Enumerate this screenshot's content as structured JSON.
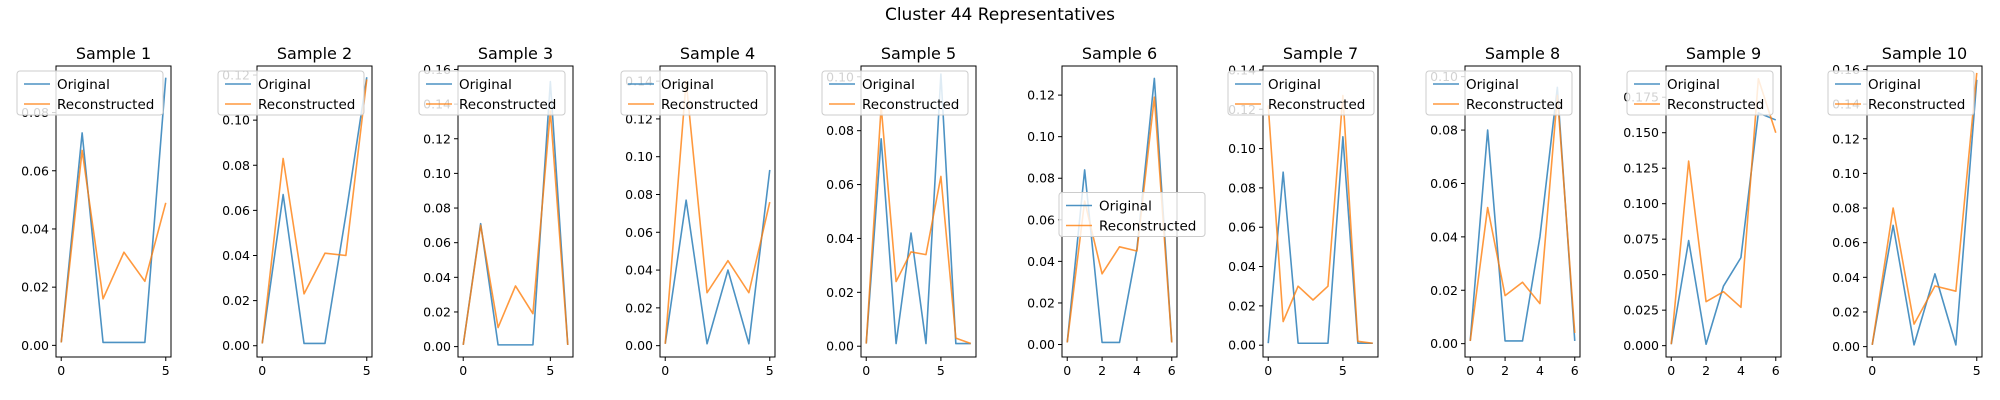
{
  "figure": {
    "title": "Cluster 44 Representatives"
  },
  "colors": {
    "original": "#1f77b4",
    "reconstructed": "#ff7f0e"
  },
  "legend": {
    "original": "Original",
    "reconstructed": "Reconstructed"
  },
  "chart_data": [
    {
      "type": "line",
      "title": "Sample 1",
      "legend_loc": "upper-left",
      "xlim": [
        -0.25,
        5.25
      ],
      "xticks": [
        0,
        5
      ],
      "ylim": [
        -0.004,
        0.096
      ],
      "yticks": [
        0.0,
        0.02,
        0.04,
        0.06,
        0.08
      ],
      "ytick_labels": [
        "0.00",
        "0.02",
        "0.04",
        "0.06",
        "0.08"
      ],
      "series": [
        {
          "name": "Original",
          "x": [
            0,
            1,
            2,
            3,
            4,
            5
          ],
          "values": [
            0.001,
            0.073,
            0.001,
            0.001,
            0.001,
            0.092
          ]
        },
        {
          "name": "Reconstructed",
          "x": [
            0,
            1,
            2,
            3,
            4,
            5
          ],
          "values": [
            0.001,
            0.067,
            0.016,
            0.032,
            0.022,
            0.049
          ]
        }
      ]
    },
    {
      "type": "line",
      "title": "Sample 2",
      "legend_loc": "upper-left",
      "xlim": [
        -0.25,
        5.25
      ],
      "xticks": [
        0,
        5
      ],
      "ylim": [
        -0.005,
        0.124
      ],
      "yticks": [
        0.0,
        0.02,
        0.04,
        0.06,
        0.08,
        0.1,
        0.12
      ],
      "ytick_labels": [
        "0.00",
        "0.02",
        "0.04",
        "0.06",
        "0.08",
        "0.10",
        "0.12"
      ],
      "series": [
        {
          "name": "Original",
          "x": [
            0,
            1,
            2,
            3,
            4,
            5
          ],
          "values": [
            0.001,
            0.067,
            0.001,
            0.001,
            0.058,
            0.119
          ]
        },
        {
          "name": "Reconstructed",
          "x": [
            0,
            1,
            2,
            3,
            4,
            5
          ],
          "values": [
            0.001,
            0.083,
            0.023,
            0.041,
            0.04,
            0.118
          ]
        }
      ]
    },
    {
      "type": "line",
      "title": "Sample 3",
      "legend_loc": "upper-left",
      "xlim": [
        -0.3,
        6.3
      ],
      "xticks": [
        0,
        5
      ],
      "ylim": [
        -0.006,
        0.162
      ],
      "yticks": [
        0.0,
        0.02,
        0.04,
        0.06,
        0.08,
        0.1,
        0.12,
        0.14,
        0.16
      ],
      "ytick_labels": [
        "0.00",
        "0.02",
        "0.04",
        "0.06",
        "0.08",
        "0.10",
        "0.12",
        "0.14",
        "0.16"
      ],
      "series": [
        {
          "name": "Original",
          "x": [
            0,
            1,
            2,
            3,
            4,
            5,
            6
          ],
          "values": [
            0.001,
            0.071,
            0.001,
            0.001,
            0.001,
            0.153,
            0.001
          ]
        },
        {
          "name": "Reconstructed",
          "x": [
            0,
            1,
            2,
            3,
            4,
            5,
            6
          ],
          "values": [
            0.001,
            0.07,
            0.011,
            0.035,
            0.019,
            0.136,
            0.001
          ]
        }
      ]
    },
    {
      "type": "line",
      "title": "Sample 4",
      "legend_loc": "upper-left",
      "xlim": [
        -0.25,
        5.25
      ],
      "xticks": [
        0,
        5
      ],
      "ylim": [
        -0.006,
        0.148
      ],
      "yticks": [
        0.0,
        0.02,
        0.04,
        0.06,
        0.08,
        0.1,
        0.12,
        0.14
      ],
      "ytick_labels": [
        "0.00",
        "0.02",
        "0.04",
        "0.06",
        "0.08",
        "0.10",
        "0.12",
        "0.14"
      ],
      "series": [
        {
          "name": "Original",
          "x": [
            0,
            1,
            2,
            3,
            4,
            5
          ],
          "values": [
            0.001,
            0.077,
            0.001,
            0.04,
            0.001,
            0.093
          ]
        },
        {
          "name": "Reconstructed",
          "x": [
            0,
            1,
            2,
            3,
            4,
            5
          ],
          "values": [
            0.001,
            0.14,
            0.028,
            0.045,
            0.028,
            0.076
          ]
        }
      ]
    },
    {
      "type": "line",
      "title": "Sample 5",
      "legend_loc": "upper-left",
      "xlim": [
        -0.35,
        7.35
      ],
      "xticks": [
        0,
        5
      ],
      "ylim": [
        -0.004,
        0.104
      ],
      "yticks": [
        0.0,
        0.02,
        0.04,
        0.06,
        0.08,
        0.1
      ],
      "ytick_labels": [
        "0.00",
        "0.02",
        "0.04",
        "0.06",
        "0.08",
        "0.10"
      ],
      "series": [
        {
          "name": "Original",
          "x": [
            0,
            1,
            2,
            3,
            4,
            5,
            6,
            7
          ],
          "values": [
            0.001,
            0.077,
            0.001,
            0.042,
            0.001,
            0.101,
            0.001,
            0.001
          ]
        },
        {
          "name": "Reconstructed",
          "x": [
            0,
            1,
            2,
            3,
            4,
            5,
            6,
            7
          ],
          "values": [
            0.001,
            0.089,
            0.024,
            0.035,
            0.034,
            0.063,
            0.003,
            0.001
          ]
        }
      ]
    },
    {
      "type": "line",
      "title": "Sample 6",
      "legend_loc": "center-left",
      "xlim": [
        -0.3,
        6.3
      ],
      "xticks": [
        0,
        2,
        4,
        6
      ],
      "ylim": [
        -0.006,
        0.134
      ],
      "yticks": [
        0.0,
        0.02,
        0.04,
        0.06,
        0.08,
        0.1,
        0.12
      ],
      "ytick_labels": [
        "0.00",
        "0.02",
        "0.04",
        "0.06",
        "0.08",
        "0.10",
        "0.12"
      ],
      "series": [
        {
          "name": "Original",
          "x": [
            0,
            1,
            2,
            3,
            4,
            5,
            6
          ],
          "values": [
            0.001,
            0.084,
            0.001,
            0.001,
            0.046,
            0.128,
            0.001
          ]
        },
        {
          "name": "Reconstructed",
          "x": [
            0,
            1,
            2,
            3,
            4,
            5,
            6
          ],
          "values": [
            0.001,
            0.069,
            0.034,
            0.047,
            0.045,
            0.119,
            0.001
          ]
        }
      ]
    },
    {
      "type": "line",
      "title": "Sample 7",
      "legend_loc": "upper-right",
      "xlim": [
        -0.35,
        7.35
      ],
      "xticks": [
        0,
        5
      ],
      "ylim": [
        -0.006,
        0.142
      ],
      "yticks": [
        0.0,
        0.02,
        0.04,
        0.06,
        0.08,
        0.1,
        0.12,
        0.14
      ],
      "ytick_labels": [
        "0.00",
        "0.02",
        "0.04",
        "0.06",
        "0.08",
        "0.10",
        "0.12",
        "0.14"
      ],
      "series": [
        {
          "name": "Original",
          "x": [
            0,
            1,
            2,
            3,
            4,
            5,
            6,
            7
          ],
          "values": [
            0.001,
            0.088,
            0.001,
            0.001,
            0.001,
            0.106,
            0.001,
            0.001
          ]
        },
        {
          "name": "Reconstructed",
          "x": [
            0,
            1,
            2,
            3,
            4,
            5,
            6,
            7
          ],
          "values": [
            0.122,
            0.012,
            0.03,
            0.023,
            0.03,
            0.127,
            0.002,
            0.001
          ]
        }
      ]
    },
    {
      "type": "line",
      "title": "Sample 8",
      "legend_loc": "upper-left",
      "xlim": [
        -0.3,
        6.3
      ],
      "xticks": [
        0,
        2,
        4,
        6
      ],
      "ylim": [
        -0.005,
        0.104
      ],
      "yticks": [
        0.0,
        0.02,
        0.04,
        0.06,
        0.08,
        0.1
      ],
      "ytick_labels": [
        "0.00",
        "0.02",
        "0.04",
        "0.06",
        "0.08",
        "0.10"
      ],
      "series": [
        {
          "name": "Original",
          "x": [
            0,
            1,
            2,
            3,
            4,
            5,
            6
          ],
          "values": [
            0.001,
            0.08,
            0.001,
            0.001,
            0.04,
            0.096,
            0.001
          ]
        },
        {
          "name": "Reconstructed",
          "x": [
            0,
            1,
            2,
            3,
            4,
            5,
            6
          ],
          "values": [
            0.001,
            0.051,
            0.018,
            0.023,
            0.015,
            0.093,
            0.004
          ]
        }
      ]
    },
    {
      "type": "line",
      "title": "Sample 9",
      "legend_loc": "upper-left",
      "xlim": [
        -0.3,
        6.3
      ],
      "xticks": [
        0,
        2,
        4,
        6
      ],
      "ylim": [
        -0.008,
        0.197
      ],
      "yticks": [
        0.0,
        0.025,
        0.05,
        0.075,
        0.1,
        0.125,
        0.15,
        0.175
      ],
      "ytick_labels": [
        "0.000",
        "0.025",
        "0.050",
        "0.075",
        "0.100",
        "0.125",
        "0.150",
        "0.175"
      ],
      "series": [
        {
          "name": "Original",
          "x": [
            0,
            1,
            2,
            3,
            4,
            5,
            6
          ],
          "values": [
            0.001,
            0.074,
            0.001,
            0.042,
            0.062,
            0.164,
            0.159
          ]
        },
        {
          "name": "Reconstructed",
          "x": [
            0,
            1,
            2,
            3,
            4,
            5,
            6
          ],
          "values": [
            0.001,
            0.13,
            0.031,
            0.038,
            0.027,
            0.188,
            0.15
          ]
        }
      ]
    },
    {
      "type": "line",
      "title": "Sample 10",
      "legend_loc": "upper-left",
      "xlim": [
        -0.25,
        5.25
      ],
      "xticks": [
        0,
        5
      ],
      "ylim": [
        -0.006,
        0.162
      ],
      "yticks": [
        0.0,
        0.02,
        0.04,
        0.06,
        0.08,
        0.1,
        0.12,
        0.14,
        0.16
      ],
      "ytick_labels": [
        "0.00",
        "0.02",
        "0.04",
        "0.06",
        "0.08",
        "0.10",
        "0.12",
        "0.14",
        "0.16"
      ],
      "series": [
        {
          "name": "Original",
          "x": [
            0,
            1,
            2,
            3,
            4,
            5
          ],
          "values": [
            0.001,
            0.07,
            0.001,
            0.042,
            0.001,
            0.154
          ]
        },
        {
          "name": "Reconstructed",
          "x": [
            0,
            1,
            2,
            3,
            4,
            5
          ],
          "values": [
            0.001,
            0.08,
            0.013,
            0.035,
            0.032,
            0.158
          ]
        }
      ]
    }
  ]
}
